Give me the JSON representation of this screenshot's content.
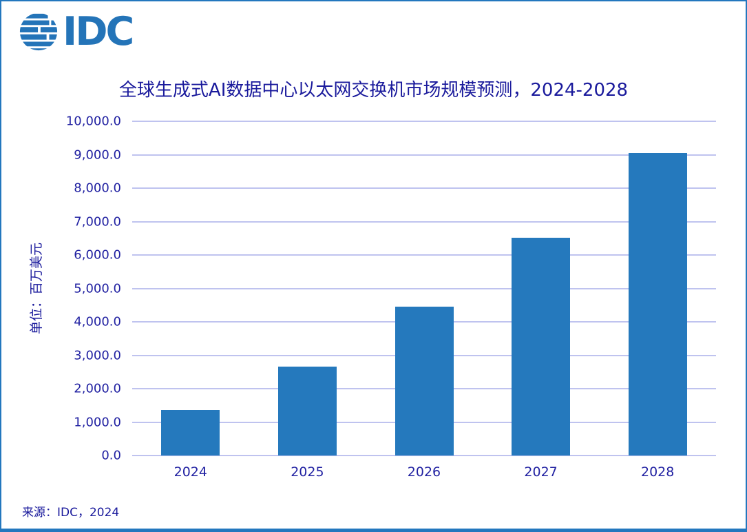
{
  "logo": {
    "text": "IDC",
    "color": "#2474B8"
  },
  "header": {
    "title": "全球生成式AI数据中心以太网交换机市场规模预测，2024-2028"
  },
  "footer": {
    "source": "来源：IDC，2024"
  },
  "chart_data": {
    "type": "bar",
    "title": "全球生成式AI数据中心以太网交换机市场规模预测，2024-2028",
    "categories": [
      "2024",
      "2025",
      "2026",
      "2027",
      "2028"
    ],
    "values": [
      1360,
      2650,
      4450,
      6520,
      9050
    ],
    "xlabel": "",
    "ylabel": "单位：百万美元",
    "ylim": [
      0,
      10000
    ],
    "ytick_values": [
      0,
      1000,
      2000,
      3000,
      4000,
      5000,
      6000,
      7000,
      8000,
      9000,
      10000
    ],
    "ytick_labels": [
      "0.0",
      "1,000.0",
      "2,000.0",
      "3,000.0",
      "4,000.0",
      "5,000.0",
      "6,000.0",
      "7,000.0",
      "8,000.0",
      "9,000.0",
      "10,000.0"
    ],
    "grid": true,
    "legend_position": "none",
    "bar_color": "#2579BD",
    "gridline_color": "#BFC3EF",
    "text_color": "#2222A2",
    "title_color": "#1A1A9C",
    "source": "来源：IDC，2024"
  }
}
